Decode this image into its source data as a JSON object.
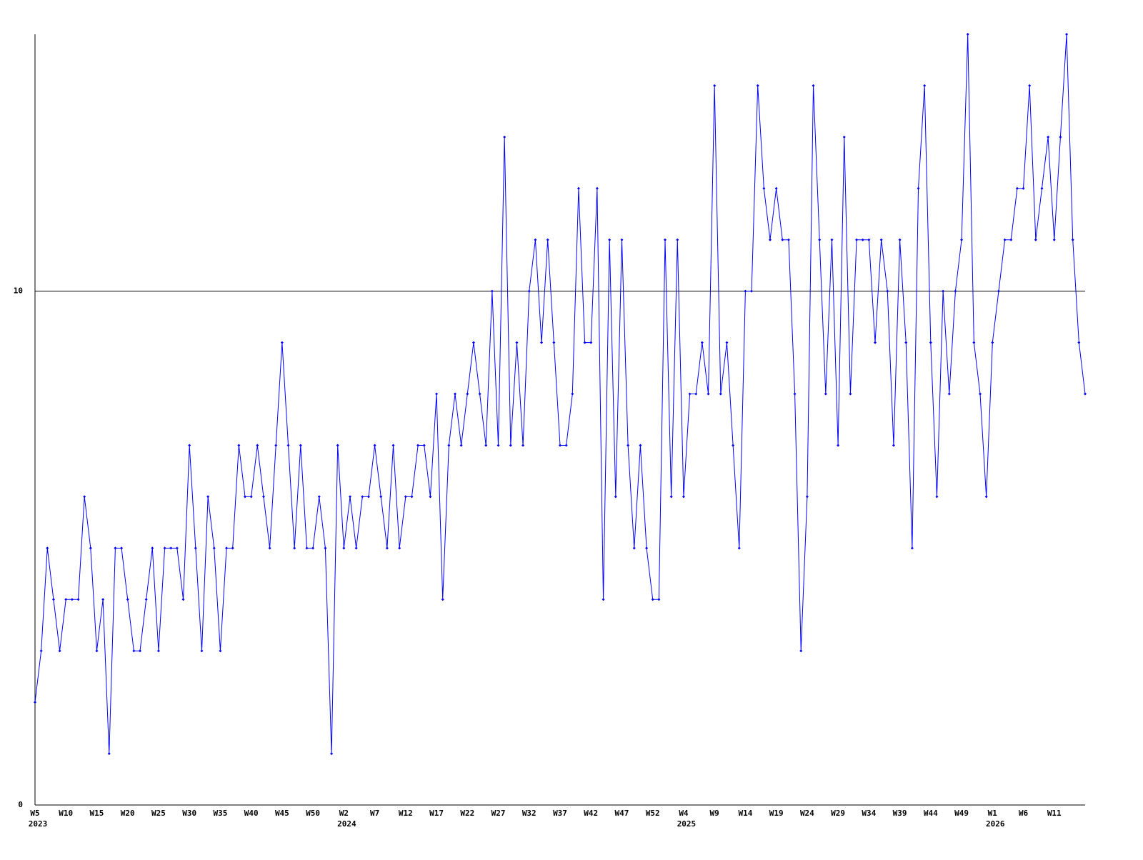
{
  "chart_data": {
    "type": "line",
    "categories": [
      "W5",
      null,
      null,
      null,
      null,
      "W10",
      null,
      null,
      null,
      null,
      "W15",
      null,
      null,
      null,
      null,
      "W20",
      null,
      null,
      null,
      null,
      "W25",
      null,
      null,
      null,
      null,
      "W30",
      null,
      null,
      null,
      null,
      "W35",
      null,
      null,
      null,
      null,
      "W40",
      null,
      null,
      null,
      null,
      "W45",
      null,
      null,
      null,
      null,
      "W50",
      null,
      null,
      null,
      null,
      "W2",
      null,
      null,
      null,
      null,
      "W7",
      null,
      null,
      null,
      null,
      "W12",
      null,
      null,
      null,
      null,
      "W17",
      null,
      null,
      null,
      null,
      "W22",
      null,
      null,
      null,
      null,
      "W27",
      null,
      null,
      null,
      null,
      "W32",
      null,
      null,
      null,
      null,
      "W37",
      null,
      null,
      null,
      null,
      "W42",
      null,
      null,
      null,
      null,
      "W47",
      null,
      null,
      null,
      null,
      "W52",
      null,
      null,
      null,
      null,
      "W4",
      null,
      null,
      null,
      null,
      "W9",
      null,
      null,
      null,
      null,
      "W14",
      null,
      null,
      null,
      null,
      "W19",
      null,
      null,
      null,
      null,
      "W24",
      null,
      null,
      null,
      null,
      "W29",
      null,
      null,
      null,
      null,
      "W34",
      null,
      null,
      null,
      null,
      "W39",
      null,
      null,
      null,
      null,
      "W44",
      null,
      null,
      null,
      null,
      "W49",
      null,
      null,
      null,
      null,
      "W1",
      null,
      null,
      null,
      null,
      "W6",
      null,
      null,
      null,
      null,
      "W11",
      null,
      null,
      null,
      null,
      null
    ],
    "category_years": [
      "2023",
      null,
      null,
      null,
      null,
      null,
      null,
      null,
      null,
      null,
      null,
      null,
      null,
      null,
      null,
      null,
      null,
      null,
      null,
      null,
      null,
      null,
      null,
      null,
      null,
      null,
      null,
      null,
      null,
      null,
      null,
      null,
      null,
      null,
      null,
      null,
      null,
      null,
      null,
      null,
      null,
      null,
      null,
      null,
      null,
      null,
      null,
      null,
      null,
      null,
      "2024",
      null,
      null,
      null,
      null,
      null,
      null,
      null,
      null,
      null,
      null,
      null,
      null,
      null,
      null,
      null,
      null,
      null,
      null,
      null,
      null,
      null,
      null,
      null,
      null,
      null,
      null,
      null,
      null,
      null,
      null,
      null,
      null,
      null,
      null,
      null,
      null,
      null,
      null,
      null,
      null,
      null,
      null,
      null,
      null,
      null,
      null,
      null,
      null,
      null,
      null,
      null,
      null,
      null,
      null,
      "2025",
      null,
      null,
      null,
      null,
      null,
      null,
      null,
      null,
      null,
      null,
      null,
      null,
      null,
      null,
      null,
      null,
      null,
      null,
      null,
      null,
      null,
      null,
      null,
      null,
      null,
      null,
      null,
      null,
      null,
      null,
      null,
      null,
      null,
      null,
      null,
      null,
      null,
      null,
      null,
      null,
      null,
      null,
      null,
      null,
      null,
      null,
      null,
      null,
      null,
      "2026",
      null,
      null,
      null,
      null,
      null,
      null,
      null,
      null,
      null,
      null,
      null,
      null,
      null,
      null,
      null
    ],
    "series": [
      {
        "color": "#0000ff",
        "values": [
          2,
          3,
          5,
          4,
          3,
          4,
          4,
          4,
          6,
          5,
          3,
          4,
          1,
          5,
          5,
          4,
          3,
          3,
          4,
          5,
          3,
          5,
          5,
          5,
          4,
          7,
          5,
          3,
          6,
          5,
          3,
          5,
          5,
          7,
          6,
          6,
          7,
          6,
          5,
          7,
          9,
          7,
          5,
          7,
          5,
          5,
          6,
          5,
          1,
          7,
          5,
          6,
          5,
          6,
          6,
          7,
          6,
          5,
          7,
          5,
          6,
          6,
          7,
          7,
          6,
          8,
          4,
          7,
          8,
          7,
          8,
          9,
          8,
          7,
          10,
          7,
          13,
          7,
          9,
          7,
          10,
          11,
          9,
          11,
          9,
          7,
          7,
          8,
          12,
          9,
          9,
          12,
          4,
          11,
          6,
          11,
          7,
          5,
          7,
          5,
          4,
          4,
          11,
          6,
          11,
          6,
          8,
          8,
          9,
          8,
          14,
          8,
          9,
          7,
          5,
          10,
          10,
          14,
          12,
          11,
          12,
          11,
          11,
          8,
          3,
          6,
          14,
          11,
          8,
          11,
          7,
          13,
          8,
          11,
          11,
          11,
          9,
          11,
          10,
          7,
          11,
          9,
          5,
          12,
          14,
          9,
          6,
          10,
          8,
          10,
          11,
          15,
          9,
          8,
          6,
          9,
          10,
          11,
          11,
          12,
          12,
          14,
          11,
          12,
          13,
          11,
          13,
          15,
          11,
          9,
          8
        ]
      }
    ],
    "ylim": [
      0,
      15
    ],
    "yticks": [
      0,
      10
    ],
    "grid": true
  }
}
